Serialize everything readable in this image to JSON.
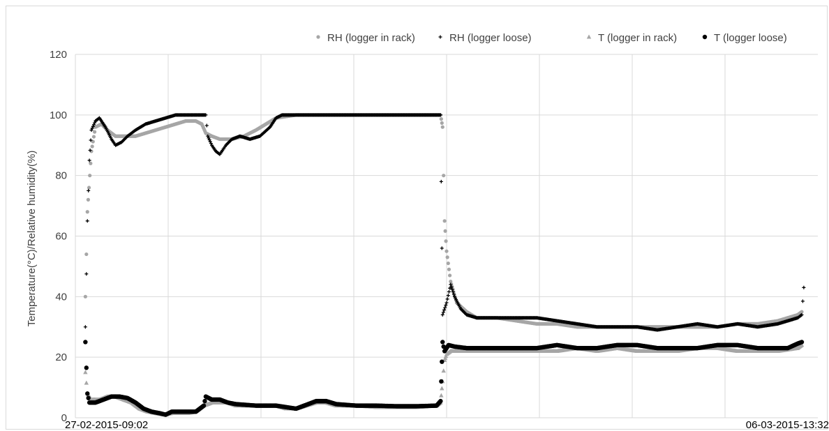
{
  "chart_data": {
    "type": "scatter",
    "title": "",
    "xlabel": "",
    "ylabel": "Temperature(°C)/Relative  humidity(%)",
    "x_start_label": "27-02-2015-09:02",
    "x_end_label": "06-03-2015-13:32",
    "ylim": [
      0,
      120
    ],
    "yticks": [
      0,
      20,
      40,
      60,
      80,
      100,
      120
    ],
    "x_gridline_count": 7,
    "grid": true,
    "legend_position": "top-right",
    "legend": [
      {
        "label": "RH (logger in rack)",
        "marker": "•"
      },
      {
        "label": "RH (logger loose)",
        "marker": "+"
      },
      {
        "label": "T (logger in rack)",
        "marker": "▲"
      },
      {
        "label": "T (logger loose)",
        "marker": "●"
      }
    ],
    "series": [
      {
        "name": "RH (logger in rack)",
        "color": "#a6a6a6",
        "marker": "circle-small",
        "points": [
          [
            0.5,
            40
          ],
          [
            0.6,
            68
          ],
          [
            0.8,
            88
          ],
          [
            1.0,
            96
          ],
          [
            1.3,
            97
          ],
          [
            1.6,
            95
          ],
          [
            2.0,
            93
          ],
          [
            2.3,
            93
          ],
          [
            2.6,
            93
          ],
          [
            3.0,
            93
          ],
          [
            3.5,
            94
          ],
          [
            4.0,
            95
          ],
          [
            4.5,
            96
          ],
          [
            5.0,
            97
          ],
          [
            5.5,
            98
          ],
          [
            6.0,
            98
          ],
          [
            6.3,
            97
          ],
          [
            6.5,
            94
          ],
          [
            6.8,
            93
          ],
          [
            7.2,
            92
          ],
          [
            7.8,
            92
          ],
          [
            8.4,
            93
          ],
          [
            9.0,
            95
          ],
          [
            9.5,
            97
          ],
          [
            10,
            99
          ],
          [
            11,
            100
          ],
          [
            13,
            100
          ],
          [
            15,
            100
          ],
          [
            17,
            100
          ],
          [
            18.2,
            100
          ],
          [
            18.3,
            96
          ],
          [
            18.35,
            80
          ],
          [
            18.4,
            65
          ],
          [
            18.5,
            55
          ],
          [
            18.7,
            45
          ],
          [
            19,
            38
          ],
          [
            19.5,
            35
          ],
          [
            20,
            33
          ],
          [
            21,
            33
          ],
          [
            22,
            32
          ],
          [
            23,
            31
          ],
          [
            24,
            31
          ],
          [
            25,
            30
          ],
          [
            26,
            30
          ],
          [
            27,
            30
          ],
          [
            28,
            30
          ],
          [
            29,
            30
          ],
          [
            30,
            30
          ],
          [
            31,
            30
          ],
          [
            32,
            30
          ],
          [
            33,
            31
          ],
          [
            34,
            31
          ],
          [
            35,
            32
          ],
          [
            36,
            34
          ],
          [
            36.2,
            35
          ]
        ]
      },
      {
        "name": "RH (logger loose)",
        "color": "#000000",
        "marker": "plus",
        "points": [
          [
            0.5,
            30
          ],
          [
            0.6,
            65
          ],
          [
            0.7,
            85
          ],
          [
            0.8,
            95
          ],
          [
            1.0,
            98
          ],
          [
            1.2,
            99
          ],
          [
            1.5,
            96
          ],
          [
            1.8,
            92
          ],
          [
            2.0,
            90
          ],
          [
            2.3,
            91
          ],
          [
            2.6,
            93
          ],
          [
            3.0,
            95
          ],
          [
            3.5,
            97
          ],
          [
            4.0,
            98
          ],
          [
            4.5,
            99
          ],
          [
            5.0,
            100
          ],
          [
            5.5,
            100
          ],
          [
            6.0,
            100
          ],
          [
            6.5,
            100
          ],
          [
            6.6,
            93
          ],
          [
            6.8,
            90
          ],
          [
            7.0,
            88
          ],
          [
            7.2,
            87
          ],
          [
            7.5,
            90
          ],
          [
            7.8,
            92
          ],
          [
            8.2,
            93
          ],
          [
            8.7,
            92
          ],
          [
            9.2,
            93
          ],
          [
            9.7,
            96
          ],
          [
            10,
            99
          ],
          [
            10.3,
            100
          ],
          [
            12,
            100
          ],
          [
            14,
            100
          ],
          [
            16,
            100
          ],
          [
            18.2,
            100
          ],
          [
            18.3,
            34
          ],
          [
            18.5,
            38
          ],
          [
            18.7,
            44
          ],
          [
            18.9,
            40
          ],
          [
            19.2,
            36
          ],
          [
            19.5,
            34
          ],
          [
            20,
            33
          ],
          [
            21,
            33
          ],
          [
            22,
            33
          ],
          [
            22.5,
            33
          ],
          [
            23,
            33
          ],
          [
            24,
            32
          ],
          [
            25,
            31
          ],
          [
            26,
            30
          ],
          [
            27,
            30
          ],
          [
            28,
            30
          ],
          [
            29,
            29
          ],
          [
            30,
            30
          ],
          [
            31,
            31
          ],
          [
            32,
            30
          ],
          [
            33,
            31
          ],
          [
            34,
            30
          ],
          [
            35,
            31
          ],
          [
            35.5,
            32
          ],
          [
            36,
            33
          ],
          [
            36.2,
            34
          ],
          [
            36.3,
            43
          ]
        ]
      },
      {
        "name": "T (logger in rack)",
        "color": "#a6a6a6",
        "marker": "triangle",
        "points": [
          [
            0.5,
            15
          ],
          [
            0.6,
            8
          ],
          [
            0.8,
            6
          ],
          [
            1.2,
            6
          ],
          [
            1.6,
            7
          ],
          [
            2.0,
            7
          ],
          [
            2.4,
            6
          ],
          [
            2.8,
            5
          ],
          [
            3.2,
            3
          ],
          [
            3.6,
            2
          ],
          [
            4.0,
            1.5
          ],
          [
            4.4,
            1
          ],
          [
            4.8,
            1.5
          ],
          [
            5.2,
            1.5
          ],
          [
            5.6,
            1.5
          ],
          [
            6.0,
            2
          ],
          [
            6.4,
            4
          ],
          [
            6.8,
            5
          ],
          [
            7.2,
            5
          ],
          [
            7.6,
            5
          ],
          [
            8.0,
            4
          ],
          [
            9,
            4
          ],
          [
            10,
            4
          ],
          [
            10.5,
            3
          ],
          [
            11,
            3
          ],
          [
            12,
            5
          ],
          [
            12.5,
            5
          ],
          [
            13,
            4
          ],
          [
            14,
            4
          ],
          [
            15,
            3.5
          ],
          [
            16,
            3.5
          ],
          [
            17,
            3.5
          ],
          [
            18,
            4
          ],
          [
            18.2,
            5
          ],
          [
            18.3,
            12
          ],
          [
            18.4,
            19
          ],
          [
            18.5,
            21
          ],
          [
            18.7,
            22
          ],
          [
            19,
            22
          ],
          [
            20,
            22
          ],
          [
            21,
            22
          ],
          [
            22,
            22
          ],
          [
            23,
            22
          ],
          [
            24,
            22
          ],
          [
            25,
            23
          ],
          [
            26,
            22
          ],
          [
            27,
            23
          ],
          [
            28,
            22
          ],
          [
            29,
            22
          ],
          [
            30,
            22
          ],
          [
            31,
            23
          ],
          [
            32,
            23
          ],
          [
            33,
            22
          ],
          [
            34,
            22
          ],
          [
            35,
            22
          ],
          [
            36,
            23
          ],
          [
            36.2,
            24
          ]
        ]
      },
      {
        "name": "T (logger loose)",
        "color": "#000000",
        "marker": "circle",
        "points": [
          [
            0.5,
            25
          ],
          [
            0.6,
            8
          ],
          [
            0.7,
            5
          ],
          [
            1.0,
            5
          ],
          [
            1.4,
            6
          ],
          [
            1.8,
            7
          ],
          [
            2.2,
            7
          ],
          [
            2.6,
            6.5
          ],
          [
            3.0,
            5
          ],
          [
            3.4,
            3
          ],
          [
            3.8,
            2
          ],
          [
            4.2,
            1.5
          ],
          [
            4.5,
            1
          ],
          [
            4.8,
            2
          ],
          [
            5.2,
            2
          ],
          [
            5.6,
            2
          ],
          [
            6.0,
            2
          ],
          [
            6.4,
            4
          ],
          [
            6.5,
            7
          ],
          [
            6.8,
            6
          ],
          [
            7.2,
            6
          ],
          [
            7.6,
            5
          ],
          [
            8.0,
            4.5
          ],
          [
            9,
            4
          ],
          [
            10,
            4
          ],
          [
            10.5,
            3.5
          ],
          [
            11,
            3
          ],
          [
            12,
            5.5
          ],
          [
            12.5,
            5.5
          ],
          [
            13,
            4.5
          ],
          [
            14,
            4
          ],
          [
            15,
            4
          ],
          [
            16,
            3.8
          ],
          [
            17,
            3.8
          ],
          [
            18,
            4
          ],
          [
            18.2,
            5.5
          ],
          [
            18.3,
            25
          ],
          [
            18.4,
            22
          ],
          [
            18.6,
            24
          ],
          [
            18.9,
            23.5
          ],
          [
            19.5,
            23
          ],
          [
            20,
            23
          ],
          [
            21,
            23
          ],
          [
            22,
            23
          ],
          [
            23,
            23
          ],
          [
            24,
            24
          ],
          [
            25,
            23
          ],
          [
            26,
            23
          ],
          [
            27,
            24
          ],
          [
            28,
            24
          ],
          [
            29,
            23
          ],
          [
            30,
            23
          ],
          [
            31,
            23
          ],
          [
            32,
            24
          ],
          [
            33,
            24
          ],
          [
            34,
            23
          ],
          [
            35,
            23
          ],
          [
            35.5,
            23
          ],
          [
            36,
            24.5
          ],
          [
            36.2,
            25
          ]
        ]
      }
    ]
  }
}
